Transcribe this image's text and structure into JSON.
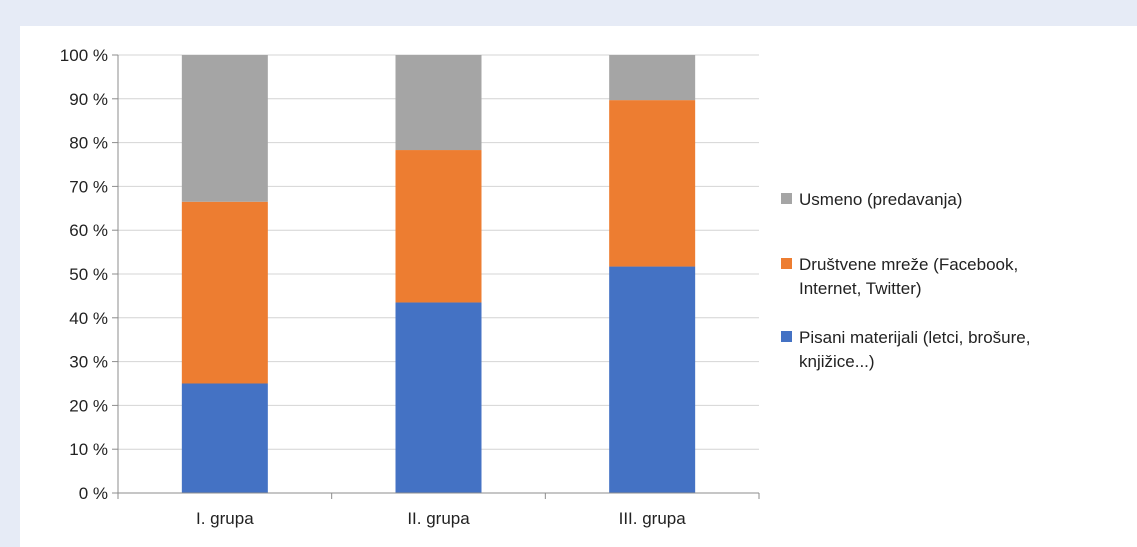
{
  "chart_data": {
    "type": "bar",
    "stacked": true,
    "percent_stacked": true,
    "title": "",
    "xlabel": "",
    "ylabel": "",
    "ylim": [
      0,
      100
    ],
    "y_ticks": [
      "0 %",
      "10 %",
      "20 %",
      "30 %",
      "40 %",
      "50 %",
      "60 %",
      "70 %",
      "80 %",
      "90 %",
      "100 %"
    ],
    "grid": true,
    "legend_position": "right",
    "categories": [
      "I. grupa",
      "II. grupa",
      "III. grupa"
    ],
    "series": [
      {
        "name": "Pisani materijali (letci, brošure, knjižice...)",
        "legend_lines": [
          "Pisani materijali (letci, brošure,",
          "knjižice...)"
        ],
        "color": "#4472c4",
        "values": [
          25,
          43.5,
          51.7
        ]
      },
      {
        "name": "Društvene mreže (Facebook, Internet, Twitter)",
        "legend_lines": [
          "Društvene mreže (Facebook,",
          "Internet, Twitter)"
        ],
        "color": "#ed7d31",
        "values": [
          41.5,
          34.8,
          38
        ]
      },
      {
        "name": "Usmeno (predavanja)",
        "legend_lines": [
          "Usmeno (predavanja)"
        ],
        "color": "#a5a5a5",
        "values": [
          33.5,
          21.7,
          10.3
        ]
      }
    ]
  }
}
